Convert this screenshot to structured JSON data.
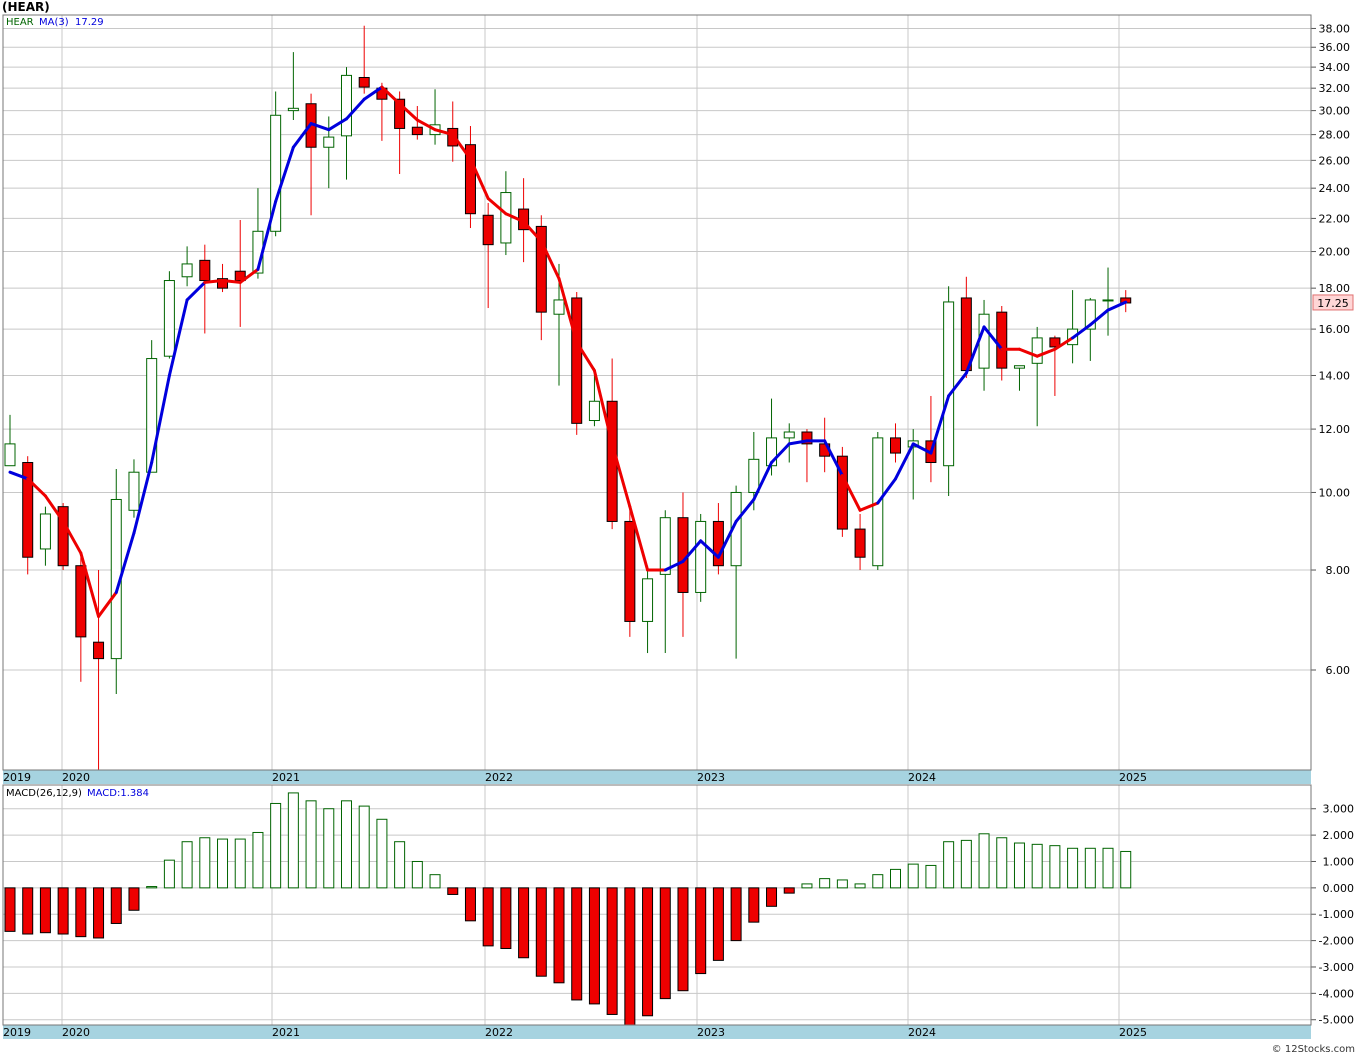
{
  "header": {
    "title": "(HEAR)"
  },
  "legend": {
    "symbol": "HEAR",
    "ma_label": "MA(3)",
    "ma_value": "17.29",
    "macd_label": "MACD(26,12,9)",
    "macd_value": "MACD:1.384"
  },
  "price_badge": "17.25",
  "watermark": "© 12Stocks.com",
  "colors": {
    "up": "#006400",
    "down": "#ee0000",
    "ma_up": "#0000dd",
    "ma_down": "#ee0000",
    "axis_band": "#a6d3e0"
  },
  "chart_data": [
    {
      "type": "candlestick",
      "title": "",
      "yscale": "log",
      "ylim": [
        4.5,
        39.5
      ],
      "yticks": [
        6,
        8,
        10,
        12,
        14,
        16,
        18,
        20,
        22,
        24,
        26,
        28,
        30,
        32,
        34,
        36,
        38
      ],
      "x_year_labels": [
        "2019",
        "2020",
        "2021",
        "2022",
        "2023",
        "2024",
        "2025"
      ],
      "moving_average": "MA(3)",
      "ohlc": [
        [
          10.8,
          12.5,
          10.8,
          11.5
        ],
        [
          10.9,
          11.1,
          7.9,
          8.3
        ],
        [
          8.5,
          9.6,
          8.1,
          9.4
        ],
        [
          9.6,
          9.7,
          8.0,
          8.1
        ],
        [
          8.1,
          8.3,
          5.8,
          6.6
        ],
        [
          6.5,
          8.0,
          4.5,
          6.2
        ],
        [
          6.2,
          10.7,
          5.6,
          9.8
        ],
        [
          9.5,
          11.0,
          9.3,
          10.6
        ],
        [
          10.6,
          15.5,
          10.6,
          14.7
        ],
        [
          14.8,
          18.9,
          14.7,
          18.4
        ],
        [
          18.6,
          20.3,
          18.1,
          19.3
        ],
        [
          19.5,
          20.4,
          15.8,
          18.4
        ],
        [
          18.5,
          19.3,
          17.8,
          18.0
        ],
        [
          18.9,
          21.9,
          16.1,
          18.4
        ],
        [
          18.8,
          24.0,
          18.5,
          21.2
        ],
        [
          21.2,
          31.7,
          20.9,
          29.6
        ],
        [
          30.0,
          35.5,
          29.2,
          30.2
        ],
        [
          30.6,
          31.5,
          22.2,
          27.0
        ],
        [
          27.0,
          29.5,
          24.0,
          27.8
        ],
        [
          27.9,
          34.0,
          24.6,
          33.2
        ],
        [
          33.0,
          38.3,
          31.5,
          32.1
        ],
        [
          32.0,
          32.5,
          27.5,
          31.0
        ],
        [
          31.0,
          31.7,
          25.0,
          28.5
        ],
        [
          28.6,
          30.4,
          27.6,
          28.0
        ],
        [
          28.0,
          31.9,
          27.2,
          28.8
        ],
        [
          28.5,
          30.8,
          25.9,
          27.1
        ],
        [
          27.2,
          28.7,
          21.4,
          22.3
        ],
        [
          22.2,
          23.0,
          17.0,
          20.4
        ],
        [
          20.5,
          25.2,
          19.8,
          23.7
        ],
        [
          22.6,
          24.7,
          19.4,
          21.3
        ],
        [
          21.5,
          22.2,
          15.5,
          16.8
        ],
        [
          16.7,
          19.3,
          13.6,
          17.4
        ],
        [
          17.5,
          17.8,
          11.8,
          12.2
        ],
        [
          12.3,
          14.3,
          12.1,
          13.0
        ],
        [
          13.0,
          14.7,
          9.0,
          9.2
        ],
        [
          9.2,
          9.6,
          6.6,
          6.9
        ],
        [
          6.9,
          8.1,
          6.3,
          7.8
        ],
        [
          7.9,
          9.5,
          6.3,
          9.3
        ],
        [
          9.3,
          10.0,
          6.6,
          7.5
        ],
        [
          7.5,
          9.4,
          7.3,
          9.2
        ],
        [
          9.2,
          9.7,
          7.9,
          8.1
        ],
        [
          8.1,
          10.2,
          6.2,
          10.0
        ],
        [
          10.0,
          11.9,
          9.5,
          11.0
        ],
        [
          10.8,
          13.1,
          10.5,
          11.7
        ],
        [
          11.7,
          12.2,
          10.9,
          11.9
        ],
        [
          11.9,
          12.0,
          10.3,
          11.5
        ],
        [
          11.5,
          12.4,
          10.6,
          11.1
        ],
        [
          11.1,
          11.4,
          8.8,
          9.0
        ],
        [
          9.0,
          9.4,
          8.0,
          8.3
        ],
        [
          8.1,
          11.9,
          8.0,
          11.7
        ],
        [
          11.7,
          12.2,
          10.9,
          11.2
        ],
        [
          11.4,
          12.0,
          9.8,
          11.6
        ],
        [
          11.6,
          13.2,
          10.3,
          10.9
        ],
        [
          10.8,
          18.1,
          9.9,
          17.3
        ],
        [
          17.5,
          18.6,
          13.9,
          14.2
        ],
        [
          14.3,
          17.4,
          13.4,
          16.7
        ],
        [
          16.8,
          17.1,
          13.8,
          14.3
        ],
        [
          14.3,
          14.4,
          13.4,
          14.4
        ],
        [
          14.5,
          16.1,
          12.1,
          15.6
        ],
        [
          15.6,
          15.7,
          13.2,
          15.2
        ],
        [
          15.3,
          17.9,
          14.5,
          16.0
        ],
        [
          16.0,
          17.5,
          14.6,
          17.4
        ],
        [
          17.4,
          19.1,
          15.7,
          17.4
        ],
        [
          17.5,
          17.9,
          16.8,
          17.25
        ]
      ],
      "ma": [
        10.6,
        10.4,
        9.9,
        9.2,
        8.4,
        7.0,
        7.5,
        8.9,
        10.9,
        14.0,
        17.4,
        18.3,
        18.4,
        18.3,
        19.0,
        23.1,
        27.0,
        28.9,
        28.4,
        29.3,
        31.0,
        32.1,
        30.6,
        29.2,
        28.4,
        28.0,
        26.1,
        23.3,
        22.3,
        21.8,
        20.6,
        18.5,
        15.4,
        14.2,
        11.5,
        9.6,
        8.0,
        8.0,
        8.2,
        8.7,
        8.3,
        9.2,
        9.8,
        10.9,
        11.5,
        11.6,
        11.6,
        10.5,
        9.5,
        9.7,
        10.4,
        11.5,
        11.2,
        13.2,
        14.1,
        16.1,
        15.1,
        15.1,
        14.8,
        15.1,
        15.6,
        16.2,
        16.9,
        17.29
      ],
      "ma_trend": "uuddddduuuuuddduuuuuuudddddddddddddddduuuuuuuuuudduuuuuuudddduuuuu"
    },
    {
      "type": "bar",
      "title": "MACD(26,12,9)",
      "ylim": [
        -5.2,
        3.9
      ],
      "yticks": [
        -5,
        -4,
        -3,
        -2,
        -1,
        0,
        1,
        2,
        3
      ],
      "values": [
        -1.65,
        -1.75,
        -1.7,
        -1.75,
        -1.85,
        -1.9,
        -1.35,
        -0.85,
        0.05,
        1.05,
        1.75,
        1.9,
        1.85,
        1.85,
        2.1,
        3.2,
        3.6,
        3.3,
        3.0,
        3.3,
        3.1,
        2.6,
        1.75,
        1.0,
        0.5,
        -0.25,
        -1.25,
        -2.2,
        -2.3,
        -2.65,
        -3.35,
        -3.6,
        -4.25,
        -4.4,
        -4.8,
        -5.2,
        -4.85,
        -4.2,
        -3.9,
        -3.25,
        -2.75,
        -2.0,
        -1.3,
        -0.7,
        -0.2,
        0.15,
        0.35,
        0.3,
        0.15,
        0.5,
        0.7,
        0.9,
        0.85,
        1.75,
        1.8,
        2.05,
        1.9,
        1.7,
        1.65,
        1.6,
        1.5,
        1.5,
        1.5,
        1.38
      ]
    }
  ]
}
